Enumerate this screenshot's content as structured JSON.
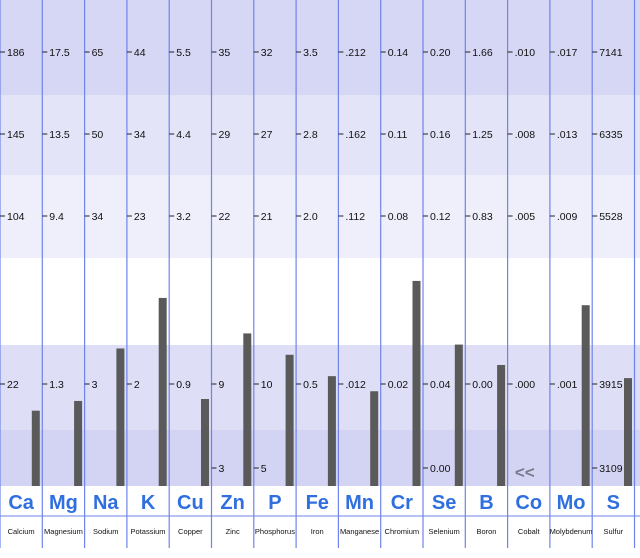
{
  "chart_data": {
    "type": "bar",
    "title": "",
    "xlabel": "",
    "ylabel": "",
    "ylim": [
      0,
      100
    ],
    "grid": true,
    "legend": "none",
    "reference_levels": [
      {
        "name": "band-1",
        "value": 88
      },
      {
        "name": "band-2",
        "value": 70
      },
      {
        "name": "band-3",
        "value": 52
      },
      {
        "name": "band-4",
        "value": 16
      }
    ],
    "elements": [
      {
        "symbol": "Ca",
        "name": "Calcium",
        "tick_labels": [
          "186",
          "145",
          "104",
          "22"
        ],
        "value": 15.5
      },
      {
        "symbol": "Mg",
        "name": "Magnesium",
        "tick_labels": [
          "17.5",
          "13.5",
          "9.4",
          "1.3"
        ],
        "value": 17.5
      },
      {
        "symbol": "Na",
        "name": "Sodium",
        "tick_labels": [
          "65",
          "50",
          "34",
          "3"
        ],
        "value": 28.3
      },
      {
        "symbol": "K",
        "name": "Potassium",
        "tick_labels": [
          "44",
          "34",
          "23",
          "2"
        ],
        "value": 38.7
      },
      {
        "symbol": "Cu",
        "name": "Copper",
        "tick_labels": [
          "5.5",
          "4.4",
          "3.2",
          "0.9"
        ],
        "value": 17.9
      },
      {
        "symbol": "Zn",
        "name": "Zinc",
        "tick_labels": [
          "35",
          "29",
          "22",
          "9",
          "3"
        ],
        "value": 31.4
      },
      {
        "symbol": "P",
        "name": "Phosphorus",
        "tick_labels": [
          "32",
          "27",
          "21",
          "10",
          "5"
        ],
        "value": 27.0
      },
      {
        "symbol": "Fe",
        "name": "Iron",
        "tick_labels": [
          "3.5",
          "2.8",
          "2.0",
          "0.5"
        ],
        "value": 22.6
      },
      {
        "symbol": "Mn",
        "name": "Manganese",
        "tick_labels": [
          ".212",
          ".162",
          ".112",
          ".012"
        ],
        "value": 19.5
      },
      {
        "symbol": "Cr",
        "name": "Chromium",
        "tick_labels": [
          "0.14",
          "0.11",
          "0.08",
          "0.02"
        ],
        "value": 42.2
      },
      {
        "symbol": "Se",
        "name": "Selenium",
        "tick_labels": [
          "0.20",
          "0.16",
          "0.12",
          "0.04",
          "0.00"
        ],
        "value": 29.1
      },
      {
        "symbol": "B",
        "name": "Boron",
        "tick_labels": [
          "1.66",
          "1.25",
          "0.83",
          "0.00"
        ],
        "value": 24.9
      },
      {
        "symbol": "Co",
        "name": "Cobalt",
        "tick_labels": [
          ".010",
          ".008",
          ".005",
          ".000"
        ],
        "value": 0,
        "marker": "<<"
      },
      {
        "symbol": "Mo",
        "name": "Molybdenum",
        "tick_labels": [
          ".017",
          ".013",
          ".009",
          ".001"
        ],
        "value": 37.2
      },
      {
        "symbol": "S",
        "name": "Sulfur",
        "tick_labels": [
          "7141",
          "6335",
          "5528",
          "3915",
          "3109"
        ],
        "value": 22.2
      }
    ]
  },
  "colors": {
    "band_top": "#d6d6f5",
    "band_mid": "#e4e4f8",
    "band_upper_low": "#efeffb",
    "band_white": "#ffffff",
    "band_lower": "#dedef6",
    "band_bottom": "#d3d3f3",
    "column_line": "#6f84ea",
    "bar": "#5a5a5a",
    "symbol": "#2f6fe0",
    "marker": "#7a7a8a"
  }
}
